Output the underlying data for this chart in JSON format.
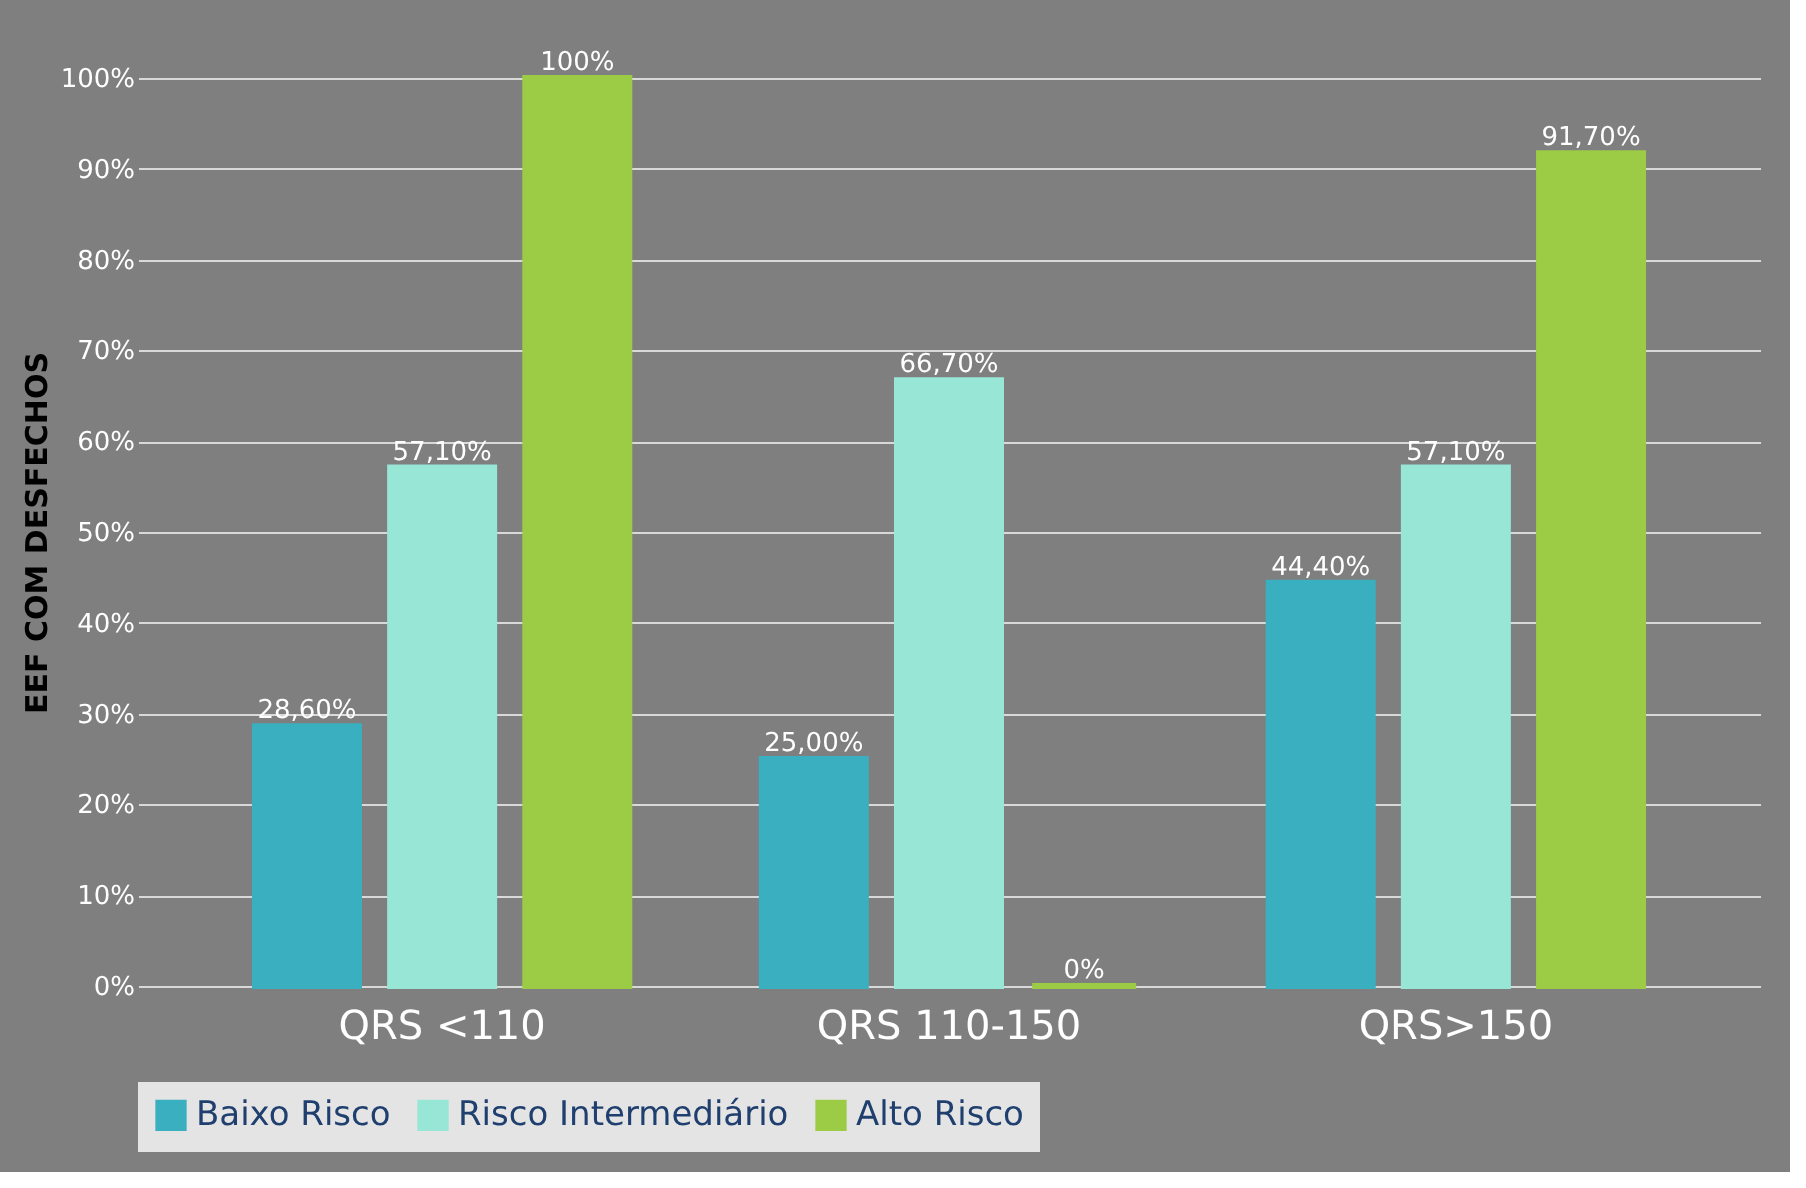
{
  "chart_data": {
    "type": "bar",
    "ylabel": "EEF COM DESFECHOS",
    "categories": [
      "QRS <110",
      "QRS 110-150",
      "QRS>150"
    ],
    "series": [
      {
        "name": "Baixo Risco",
        "color": "#3aafbf",
        "values": [
          28.6,
          25.0,
          44.4
        ],
        "value_labels": [
          "28,60%",
          "25,00%",
          "44,40%"
        ]
      },
      {
        "name": "Risco Intermediário",
        "color": "#97e6d6",
        "values": [
          57.1,
          66.7,
          57.1
        ],
        "value_labels": [
          "57,10%",
          "66,70%",
          "57,10%"
        ]
      },
      {
        "name": "Alto Risco",
        "color": "#9ccb45",
        "values": [
          100,
          0,
          91.7
        ],
        "value_labels": [
          "100%",
          "0%",
          "91,70%"
        ]
      }
    ],
    "ylim": [
      0,
      100
    ],
    "yticks": [
      {
        "value": 0,
        "label": "0%"
      },
      {
        "value": 10,
        "label": "10%"
      },
      {
        "value": 20,
        "label": "20%"
      },
      {
        "value": 30,
        "label": "30%"
      },
      {
        "value": 40,
        "label": "40%"
      },
      {
        "value": 50,
        "label": "50%"
      },
      {
        "value": 60,
        "label": "60%"
      },
      {
        "value": 70,
        "label": "70%"
      },
      {
        "value": 80,
        "label": "80%"
      },
      {
        "value": 90,
        "label": "90%"
      },
      {
        "value": 100,
        "label": "100%"
      }
    ],
    "grid": "y",
    "legend": "bottom"
  }
}
